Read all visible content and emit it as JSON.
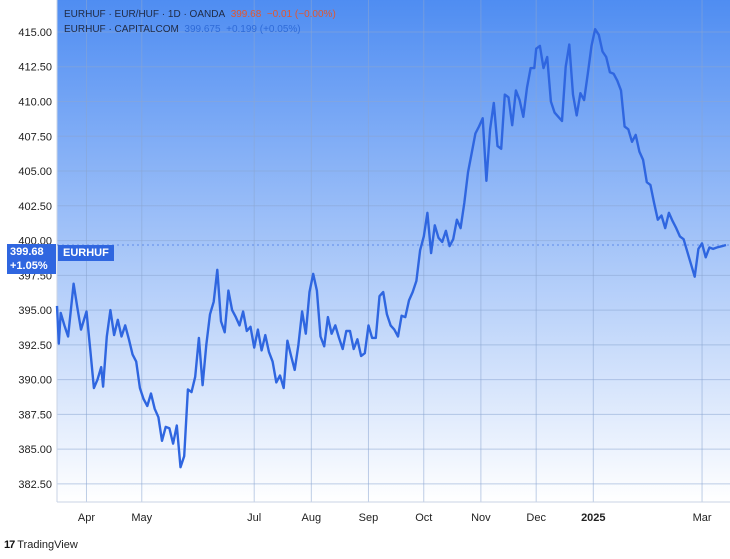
{
  "header": {
    "row1": {
      "symbol": "EURHUF · EUR/HUF · 1D · OANDA",
      "price": "399.68",
      "change": "−0.01 (−0.00%)"
    },
    "row2": {
      "symbol": "EURHUF · CAPITALCOM",
      "price": "399.675",
      "change": "+0.199 (+0.05%)"
    }
  },
  "price_tag": {
    "price": "399.68",
    "change": "+1.05%",
    "series": "EURHUF"
  },
  "footer": {
    "logo": "17",
    "brand": "TradingView"
  },
  "colors": {
    "line": "#2f66e0",
    "bg_top": "#4f8df2",
    "bg_bottom": "#ffffff",
    "grid": "#8aa6d2"
  },
  "chart_data": {
    "type": "line",
    "title": "",
    "xlabel": "",
    "ylabel": "",
    "y_axis_side": "left",
    "ylim": [
      381.2,
      417.3
    ],
    "y_ticks": [
      "415.00",
      "412.50",
      "410.00",
      "407.50",
      "405.00",
      "402.50",
      "400.00",
      "397.50",
      "395.00",
      "392.50",
      "390.00",
      "387.50",
      "385.00",
      "382.50"
    ],
    "x_ticks": [
      "Apr",
      "May",
      "Jul",
      "Aug",
      "Sep",
      "Oct",
      "Nov",
      "Dec",
      "2025",
      "Mar"
    ],
    "x_tick_dates": [
      "2024-04-01",
      "2024-05-01",
      "2024-07-01",
      "2024-08-01",
      "2024-09-01",
      "2024-10-01",
      "2024-11-01",
      "2024-12-01",
      "2025-01-01",
      "2025-03-01"
    ],
    "x_range": [
      "2024-03-16",
      "2025-03-14"
    ],
    "grid": true,
    "series": [
      {
        "name": "EURHUF",
        "points": [
          [
            "2024-03-16",
            395.3
          ],
          [
            "2024-03-17",
            392.6
          ],
          [
            "2024-03-18",
            394.8
          ],
          [
            "2024-03-20",
            393.9
          ],
          [
            "2024-03-22",
            393.1
          ],
          [
            "2024-03-25",
            396.9
          ],
          [
            "2024-03-27",
            395.2
          ],
          [
            "2024-03-29",
            393.6
          ],
          [
            "2024-04-01",
            394.9
          ],
          [
            "2024-04-03",
            392.2
          ],
          [
            "2024-04-05",
            389.4
          ],
          [
            "2024-04-07",
            390.0
          ],
          [
            "2024-04-09",
            390.9
          ],
          [
            "2024-04-10",
            389.5
          ],
          [
            "2024-04-12",
            393.1
          ],
          [
            "2024-04-14",
            395.0
          ],
          [
            "2024-04-16",
            393.2
          ],
          [
            "2024-04-18",
            394.3
          ],
          [
            "2024-04-20",
            393.1
          ],
          [
            "2024-04-22",
            393.9
          ],
          [
            "2024-04-24",
            392.9
          ],
          [
            "2024-04-26",
            391.8
          ],
          [
            "2024-04-28",
            391.3
          ],
          [
            "2024-04-30",
            389.4
          ],
          [
            "2024-05-02",
            388.6
          ],
          [
            "2024-05-04",
            388.1
          ],
          [
            "2024-05-06",
            389.0
          ],
          [
            "2024-05-08",
            387.9
          ],
          [
            "2024-05-10",
            387.3
          ],
          [
            "2024-05-12",
            385.6
          ],
          [
            "2024-05-14",
            386.6
          ],
          [
            "2024-05-16",
            386.5
          ],
          [
            "2024-05-18",
            385.4
          ],
          [
            "2024-05-20",
            386.7
          ],
          [
            "2024-05-22",
            383.7
          ],
          [
            "2024-05-24",
            384.5
          ],
          [
            "2024-05-26",
            389.3
          ],
          [
            "2024-05-28",
            389.1
          ],
          [
            "2024-05-30",
            390.2
          ],
          [
            "2024-06-01",
            393.0
          ],
          [
            "2024-06-03",
            389.6
          ],
          [
            "2024-06-05",
            392.5
          ],
          [
            "2024-06-07",
            394.7
          ],
          [
            "2024-06-09",
            395.6
          ],
          [
            "2024-06-11",
            397.9
          ],
          [
            "2024-06-13",
            394.2
          ],
          [
            "2024-06-15",
            393.4
          ],
          [
            "2024-06-17",
            396.4
          ],
          [
            "2024-06-19",
            395.0
          ],
          [
            "2024-06-21",
            394.5
          ],
          [
            "2024-06-23",
            393.9
          ],
          [
            "2024-06-25",
            394.9
          ],
          [
            "2024-06-27",
            393.5
          ],
          [
            "2024-06-29",
            393.8
          ],
          [
            "2024-07-01",
            392.3
          ],
          [
            "2024-07-03",
            393.6
          ],
          [
            "2024-07-05",
            392.1
          ],
          [
            "2024-07-07",
            393.2
          ],
          [
            "2024-07-09",
            392.0
          ],
          [
            "2024-07-11",
            391.3
          ],
          [
            "2024-07-13",
            389.8
          ],
          [
            "2024-07-15",
            390.3
          ],
          [
            "2024-07-17",
            389.4
          ],
          [
            "2024-07-19",
            392.8
          ],
          [
            "2024-07-21",
            391.7
          ],
          [
            "2024-07-23",
            390.7
          ],
          [
            "2024-07-25",
            392.5
          ],
          [
            "2024-07-27",
            394.9
          ],
          [
            "2024-07-29",
            393.3
          ],
          [
            "2024-07-31",
            396.3
          ],
          [
            "2024-08-02",
            397.6
          ],
          [
            "2024-08-04",
            396.4
          ],
          [
            "2024-08-06",
            393.1
          ],
          [
            "2024-08-08",
            392.4
          ],
          [
            "2024-08-10",
            394.5
          ],
          [
            "2024-08-12",
            393.3
          ],
          [
            "2024-08-14",
            393.9
          ],
          [
            "2024-08-16",
            393.0
          ],
          [
            "2024-08-18",
            392.2
          ],
          [
            "2024-08-20",
            393.5
          ],
          [
            "2024-08-22",
            393.5
          ],
          [
            "2024-08-24",
            392.2
          ],
          [
            "2024-08-26",
            392.9
          ],
          [
            "2024-08-28",
            391.7
          ],
          [
            "2024-08-30",
            391.9
          ],
          [
            "2024-09-01",
            393.9
          ],
          [
            "2024-09-03",
            393.0
          ],
          [
            "2024-09-05",
            393.0
          ],
          [
            "2024-09-07",
            396.0
          ],
          [
            "2024-09-09",
            396.3
          ],
          [
            "2024-09-11",
            394.7
          ],
          [
            "2024-09-13",
            393.9
          ],
          [
            "2024-09-15",
            393.6
          ],
          [
            "2024-09-17",
            393.1
          ],
          [
            "2024-09-19",
            394.6
          ],
          [
            "2024-09-21",
            394.5
          ],
          [
            "2024-09-23",
            395.7
          ],
          [
            "2024-09-25",
            396.3
          ],
          [
            "2024-09-27",
            397.1
          ],
          [
            "2024-09-29",
            399.3
          ],
          [
            "2024-10-01",
            400.3
          ],
          [
            "2024-10-03",
            402.0
          ],
          [
            "2024-10-05",
            399.1
          ],
          [
            "2024-10-07",
            401.1
          ],
          [
            "2024-10-09",
            400.2
          ],
          [
            "2024-10-11",
            399.9
          ],
          [
            "2024-10-13",
            400.7
          ],
          [
            "2024-10-15",
            399.6
          ],
          [
            "2024-10-17",
            400.1
          ],
          [
            "2024-10-19",
            401.5
          ],
          [
            "2024-10-21",
            400.9
          ],
          [
            "2024-10-23",
            402.7
          ],
          [
            "2024-10-25",
            404.9
          ],
          [
            "2024-10-27",
            406.3
          ],
          [
            "2024-10-29",
            407.7
          ],
          [
            "2024-10-31",
            408.2
          ],
          [
            "2024-11-02",
            408.8
          ],
          [
            "2024-11-04",
            404.3
          ],
          [
            "2024-11-06",
            408.0
          ],
          [
            "2024-11-08",
            409.9
          ],
          [
            "2024-11-10",
            406.8
          ],
          [
            "2024-11-12",
            406.6
          ],
          [
            "2024-11-14",
            410.5
          ],
          [
            "2024-11-16",
            410.3
          ],
          [
            "2024-11-18",
            408.3
          ],
          [
            "2024-11-20",
            410.8
          ],
          [
            "2024-11-22",
            410.1
          ],
          [
            "2024-11-24",
            408.9
          ],
          [
            "2024-11-26",
            411.0
          ],
          [
            "2024-11-28",
            412.4
          ],
          [
            "2024-11-30",
            412.4
          ],
          [
            "2024-12-01",
            413.8
          ],
          [
            "2024-12-03",
            414.0
          ],
          [
            "2024-12-05",
            412.4
          ],
          [
            "2024-12-07",
            413.2
          ],
          [
            "2024-12-09",
            410.0
          ],
          [
            "2024-12-11",
            409.2
          ],
          [
            "2024-12-13",
            408.9
          ],
          [
            "2024-12-15",
            408.6
          ],
          [
            "2024-12-17",
            412.5
          ],
          [
            "2024-12-19",
            414.1
          ],
          [
            "2024-12-21",
            410.5
          ],
          [
            "2024-12-23",
            409.0
          ],
          [
            "2024-12-25",
            410.6
          ],
          [
            "2024-12-27",
            410.1
          ],
          [
            "2024-12-29",
            412.0
          ],
          [
            "2024-12-31",
            414.0
          ],
          [
            "2025-01-02",
            415.2
          ],
          [
            "2025-01-04",
            414.8
          ],
          [
            "2025-01-06",
            413.6
          ],
          [
            "2025-01-08",
            413.2
          ],
          [
            "2025-01-10",
            412.1
          ],
          [
            "2025-01-12",
            412.0
          ],
          [
            "2025-01-14",
            411.5
          ],
          [
            "2025-01-16",
            410.8
          ],
          [
            "2025-01-18",
            408.2
          ],
          [
            "2025-01-20",
            408.0
          ],
          [
            "2025-01-22",
            407.1
          ],
          [
            "2025-01-24",
            407.6
          ],
          [
            "2025-01-26",
            406.4
          ],
          [
            "2025-01-28",
            405.8
          ],
          [
            "2025-01-30",
            404.2
          ],
          [
            "2025-02-01",
            404.0
          ],
          [
            "2025-02-03",
            402.7
          ],
          [
            "2025-02-05",
            401.5
          ],
          [
            "2025-02-07",
            401.8
          ],
          [
            "2025-02-09",
            400.9
          ],
          [
            "2025-02-11",
            402.0
          ],
          [
            "2025-02-13",
            401.4
          ],
          [
            "2025-02-15",
            400.9
          ],
          [
            "2025-02-17",
            400.3
          ],
          [
            "2025-02-19",
            400.1
          ],
          [
            "2025-02-21",
            399.2
          ],
          [
            "2025-02-23",
            398.3
          ],
          [
            "2025-02-25",
            397.4
          ],
          [
            "2025-02-27",
            399.4
          ],
          [
            "2025-03-01",
            399.8
          ],
          [
            "2025-03-03",
            398.8
          ],
          [
            "2025-03-05",
            399.5
          ],
          [
            "2025-03-07",
            399.4
          ],
          [
            "2025-03-09",
            399.5
          ],
          [
            "2025-03-12",
            399.6
          ],
          [
            "2025-03-14",
            399.68
          ]
        ]
      }
    ]
  }
}
